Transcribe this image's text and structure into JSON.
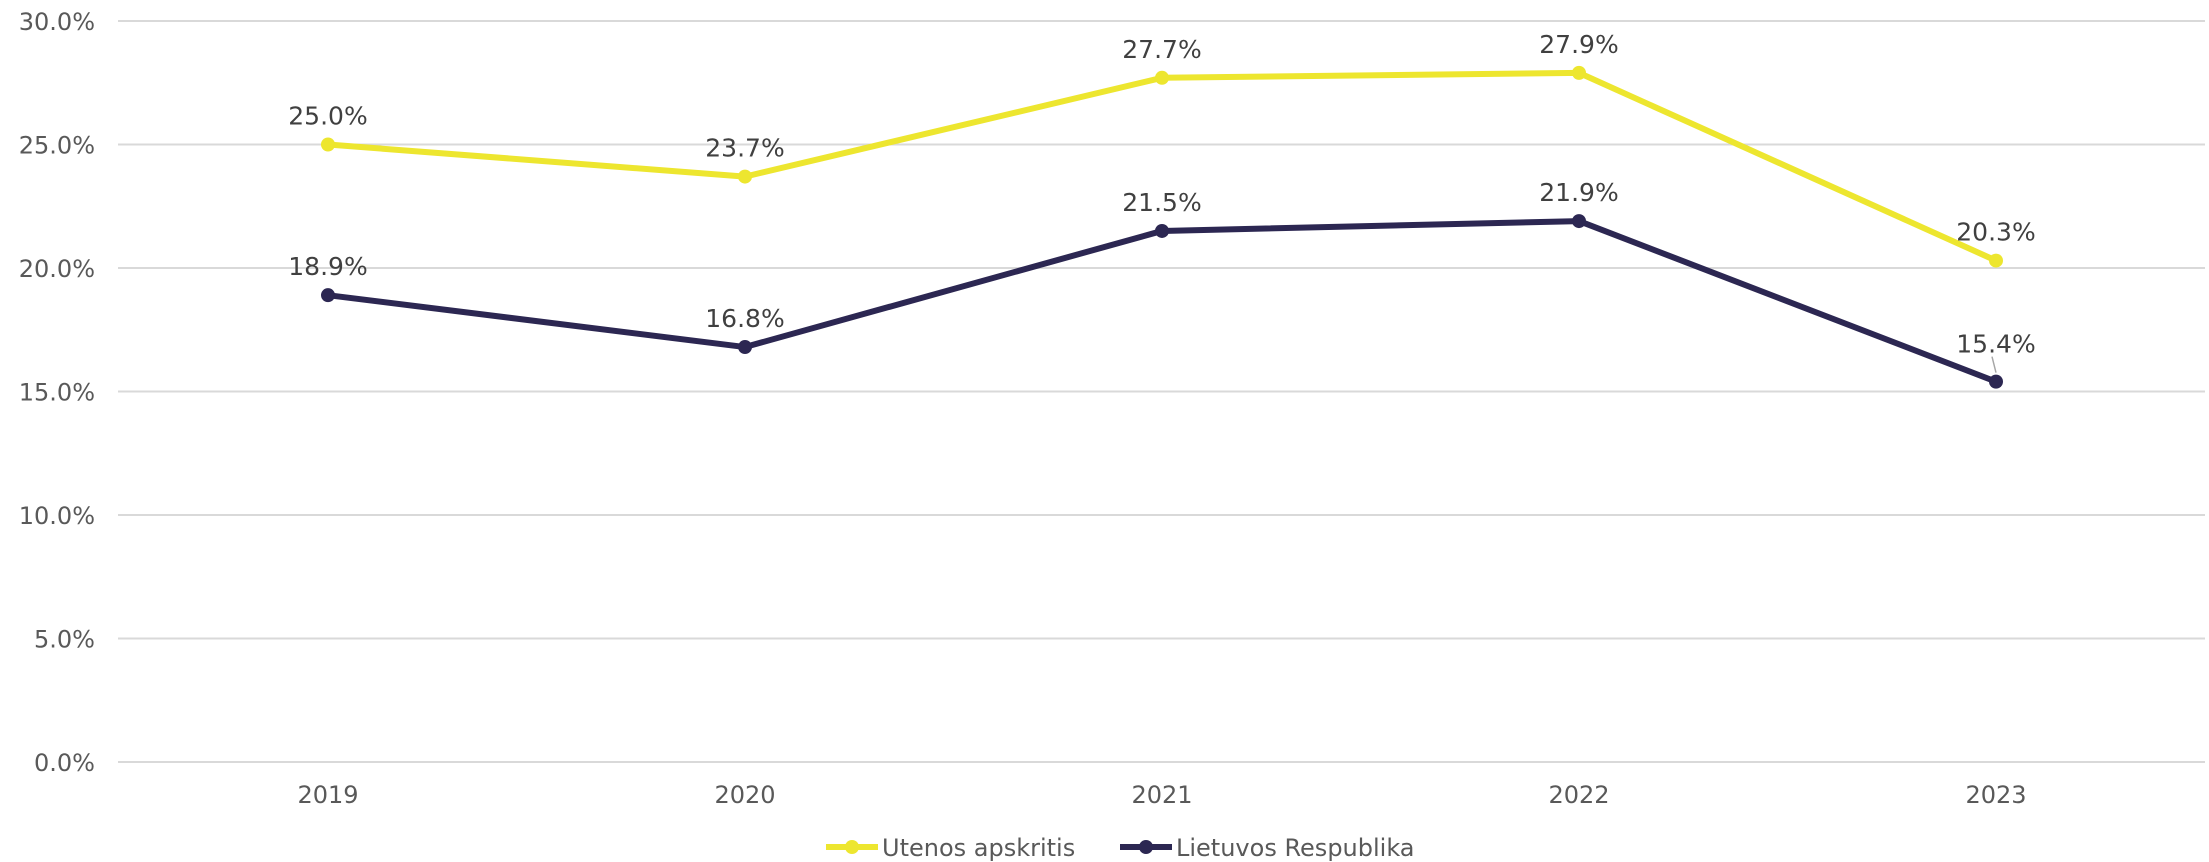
{
  "chart_data": {
    "type": "line",
    "categories": [
      "2019",
      "2020",
      "2021",
      "2022",
      "2023"
    ],
    "series": [
      {
        "name": "Utenos apskritis",
        "values": [
          25.0,
          23.7,
          27.7,
          27.9,
          20.3
        ],
        "labels": [
          "25.0%",
          "23.7%",
          "27.7%",
          "27.9%",
          "20.3%"
        ],
        "color": "#ede62f"
      },
      {
        "name": "Lietuvos Respublika",
        "values": [
          18.9,
          16.8,
          21.5,
          21.9,
          15.4
        ],
        "labels": [
          "18.9%",
          "16.8%",
          "21.5%",
          "21.9%",
          "15.4%"
        ],
        "color": "#2c2752"
      }
    ],
    "ylim": [
      0,
      30
    ],
    "yticks": [
      0,
      5,
      10,
      15,
      20,
      25,
      30
    ],
    "ytick_labels": [
      "0.0%",
      "5.0%",
      "10.0%",
      "15.0%",
      "20.0%",
      "25.0%",
      "30.0%"
    ],
    "grid": true,
    "legend_position": "bottom-center"
  }
}
